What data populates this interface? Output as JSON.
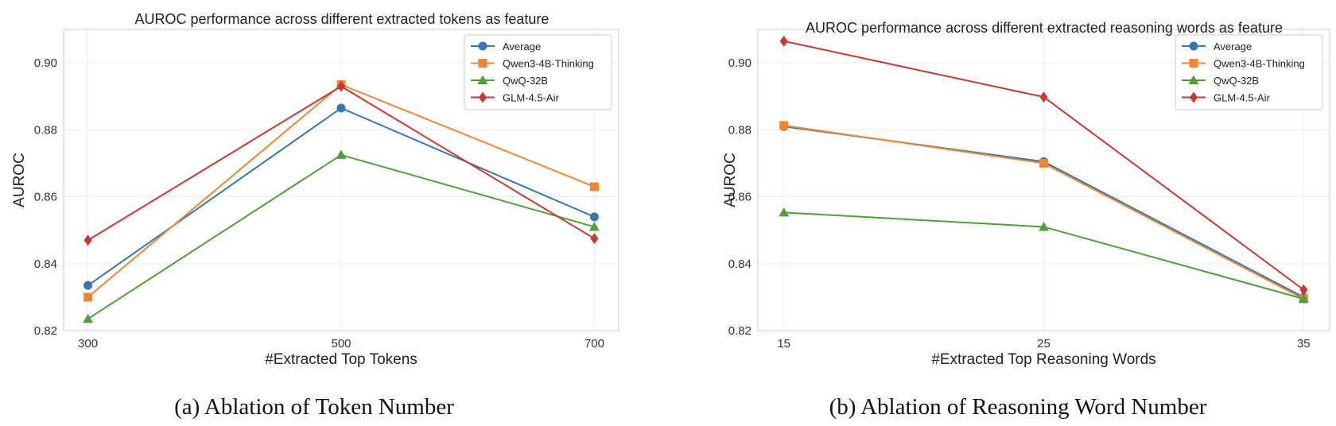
{
  "chart_data": [
    {
      "type": "line",
      "title": "AUROC performance across different extracted tokens as feature",
      "xlabel": "#Extracted Top Tokens",
      "ylabel": "AUROC",
      "x": [
        300,
        500,
        700
      ],
      "ylim": [
        0.82,
        0.91
      ],
      "yticks": [
        "0.82",
        "0.84",
        "0.86",
        "0.88",
        "0.90"
      ],
      "grid": true,
      "legend": "top-right",
      "series": [
        {
          "name": "Average",
          "values": [
            0.8335,
            0.8865,
            0.854
          ],
          "color": "#3a75af",
          "marker": "circle"
        },
        {
          "name": "Qwen3-4B-Thinking",
          "values": [
            0.83,
            0.8935,
            0.863
          ],
          "color": "#ef8636",
          "marker": "square"
        },
        {
          "name": "QwQ-32B",
          "values": [
            0.8235,
            0.8725,
            0.851
          ],
          "color": "#519e3e",
          "marker": "triangle"
        },
        {
          "name": "GLM-4.5-Air",
          "values": [
            0.847,
            0.893,
            0.8475
          ],
          "color": "#c53932",
          "marker": "diamond"
        }
      ],
      "caption": "(a)  Ablation of Token Number"
    },
    {
      "type": "line",
      "title": "AUROC performance across different extracted reasoning words as feature",
      "xlabel": "#Extracted Top Reasoning Words",
      "ylabel": "AUROC",
      "x": [
        15,
        25,
        35
      ],
      "ylim": [
        0.82,
        0.91
      ],
      "yticks": [
        "0.82",
        "0.84",
        "0.86",
        "0.88",
        "0.90"
      ],
      "grid": true,
      "legend": "top-right",
      "series": [
        {
          "name": "Average",
          "values": [
            0.881,
            0.8705,
            0.83
          ],
          "color": "#3a75af",
          "marker": "circle"
        },
        {
          "name": "Qwen3-4B-Thinking",
          "values": [
            0.8813,
            0.87,
            0.8295
          ],
          "color": "#ef8636",
          "marker": "square"
        },
        {
          "name": "QwQ-32B",
          "values": [
            0.8553,
            0.851,
            0.8295
          ],
          "color": "#519e3e",
          "marker": "triangle"
        },
        {
          "name": "GLM-4.5-Air",
          "values": [
            0.9065,
            0.8898,
            0.8322
          ],
          "color": "#c53932",
          "marker": "diamond"
        }
      ],
      "caption": "(b)  Ablation of Reasoning Word Number"
    }
  ]
}
